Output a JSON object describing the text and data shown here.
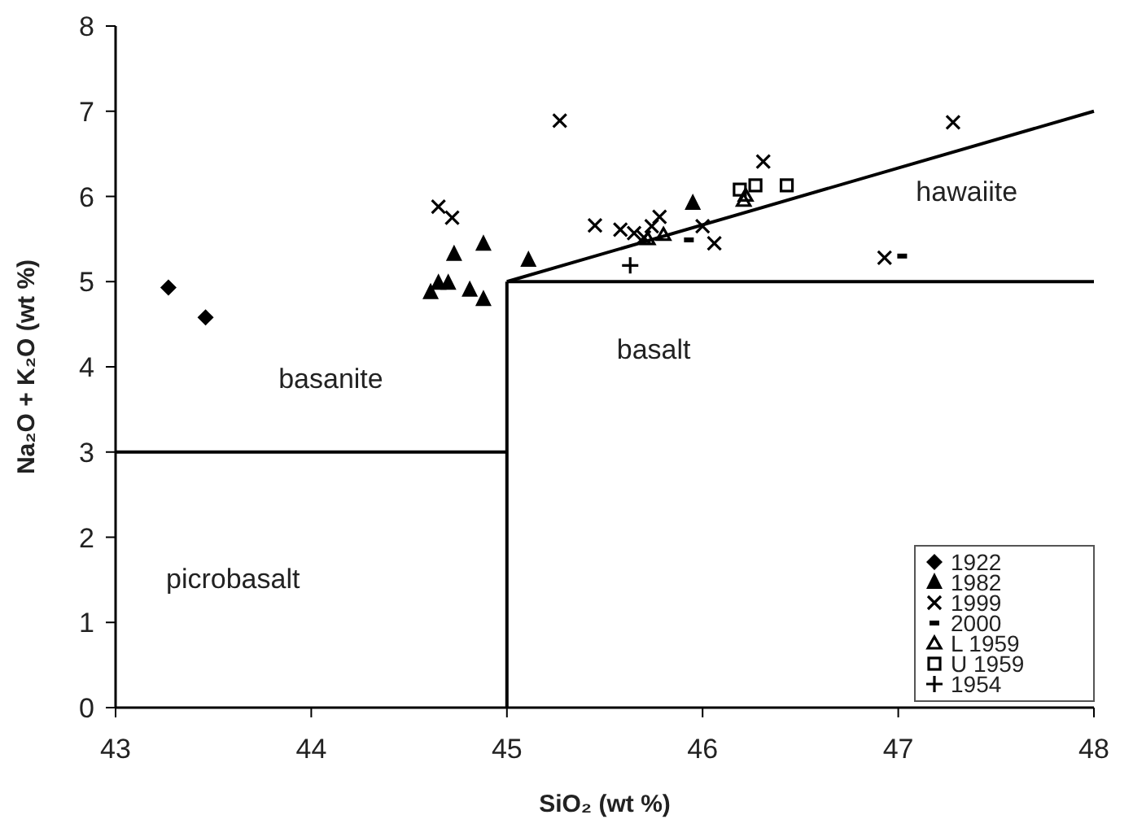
{
  "chart_data": {
    "type": "scatter",
    "xlabel": "SiO₂ (wt %)",
    "ylabel": "Na₂O + K₂O (wt %)",
    "xlim": [
      43,
      48
    ],
    "ylim": [
      0,
      8
    ],
    "xticks": [
      43,
      44,
      45,
      46,
      47,
      48
    ],
    "yticks": [
      0,
      1,
      2,
      3,
      4,
      5,
      6,
      7,
      8
    ],
    "grid": false,
    "legend": "bottom right",
    "annotations": [
      "basanite",
      "picrobasalt",
      "basalt",
      "hawaiite"
    ],
    "series": [
      {
        "type": "line",
        "color": "#000000",
        "marker": "none",
        "x": [
          43,
          45
        ],
        "values": [
          3,
          3
        ]
      },
      {
        "type": "line",
        "color": "#000000",
        "marker": "none",
        "x": [
          45,
          45
        ],
        "values": [
          0,
          5
        ]
      },
      {
        "type": "line",
        "color": "#000000",
        "marker": "none",
        "x": [
          45,
          48
        ],
        "values": [
          5,
          5
        ]
      },
      {
        "type": "line",
        "color": "#000000",
        "marker": "none",
        "x": [
          45,
          48
        ],
        "values": [
          5,
          7
        ]
      },
      {
        "name": "1922",
        "color": "#000000",
        "marker": "diamond",
        "x": [
          43.27,
          43.46
        ],
        "values": [
          4.93,
          4.58
        ]
      },
      {
        "name": "1982",
        "color": "#000000",
        "marker": "triangle",
        "x": [
          44.61,
          44.65,
          44.7,
          44.73,
          44.81,
          44.88,
          44.88,
          45.11,
          45.95
        ],
        "values": [
          4.87,
          4.98,
          4.98,
          5.32,
          4.9,
          4.79,
          5.44,
          5.25,
          5.92
        ]
      },
      {
        "name": "1999",
        "color": "#000000",
        "marker": "x",
        "x": [
          44.65,
          44.72,
          45.27,
          45.45,
          45.58,
          45.65,
          45.7,
          45.74,
          45.78,
          46.0,
          46.06,
          46.31,
          46.93,
          47.28
        ],
        "values": [
          5.88,
          5.75,
          6.89,
          5.66,
          5.61,
          5.57,
          5.52,
          5.65,
          5.76,
          5.65,
          5.45,
          6.41,
          5.28,
          6.87
        ]
      },
      {
        "name": "2000",
        "color": "#000000",
        "marker": "square",
        "x": [
          45.93,
          47.02
        ],
        "values": [
          5.49,
          5.3
        ]
      },
      {
        "name": "L 1959",
        "color": "#000000",
        "marker": "triangle-open",
        "x": [
          45.72,
          45.8,
          46.21,
          46.22
        ],
        "values": [
          5.5,
          5.55,
          5.95,
          6.01
        ]
      },
      {
        "name": "U 1959",
        "color": "#000000",
        "marker": "square-open",
        "x": [
          46.19,
          46.27,
          46.43
        ],
        "values": [
          6.08,
          6.13,
          6.13
        ]
      },
      {
        "name": "1954",
        "color": "#000000",
        "marker": "plus",
        "x": [
          45.63
        ],
        "values": [
          5.19
        ]
      }
    ]
  }
}
